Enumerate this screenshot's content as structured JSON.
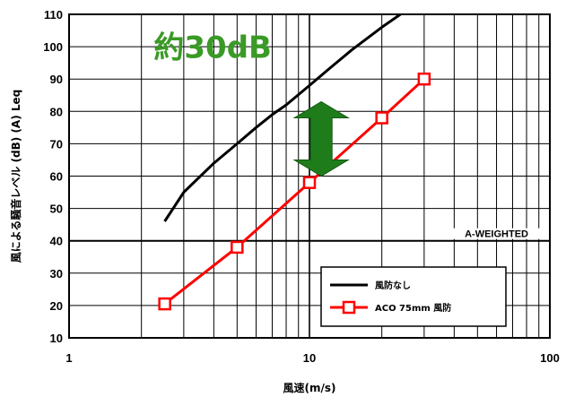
{
  "chart_data": {
    "type": "line",
    "xscale": "log",
    "xlim": [
      1,
      100
    ],
    "ylim": [
      10,
      110
    ],
    "xticks": [
      "1",
      "10",
      "100"
    ],
    "yticks": [
      "10",
      "20",
      "30",
      "40",
      "50",
      "60",
      "70",
      "80",
      "90",
      "100",
      "110"
    ],
    "xlabel": "風速(m/s)",
    "ylabel": "風による騒音レベル (dB) (A) Leq",
    "grid": true,
    "legend_position": "bottom-right",
    "series": [
      {
        "name": "風防なし",
        "color": "#000000",
        "marker": "none",
        "x": [
          2.5,
          3.0,
          4.0,
          5.0,
          6.0,
          7.0,
          8.0,
          10.0,
          12.0,
          15.0,
          20.0,
          25.0,
          30.0
        ],
        "y": [
          46,
          55,
          64,
          70,
          75,
          79,
          82,
          88,
          93,
          99,
          106,
          111,
          115
        ]
      },
      {
        "name": "ACO 75mm 風防",
        "color": "#ff0000",
        "marker": "square",
        "x": [
          2.5,
          5.0,
          10.0,
          20.0,
          30.0
        ],
        "y": [
          20.5,
          38,
          58,
          78,
          90
        ]
      }
    ],
    "annotations": {
      "big_label": "約30dB",
      "big_label_color": "#3a9a26",
      "arrow_color": "#1e7d1a",
      "arrow_x": 11.2,
      "arrow_y_top": 83,
      "arrow_y_bottom": 60,
      "weighted_label": "A-WEIGHTED",
      "weighted_line_y": 40
    }
  }
}
